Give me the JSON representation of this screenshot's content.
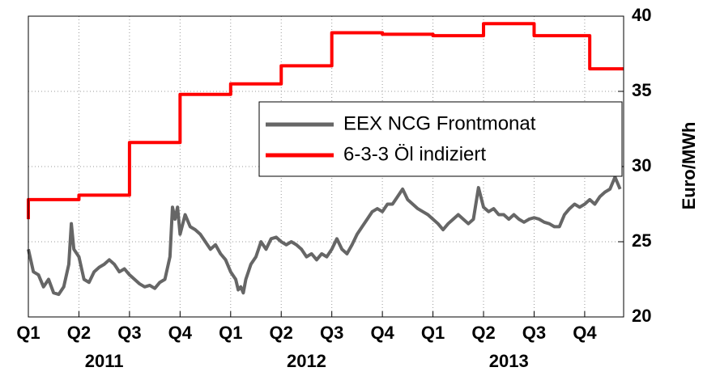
{
  "chart_data": {
    "type": "line",
    "y_label": "Euro/MWh",
    "ylim": [
      20,
      40
    ],
    "yticks": [
      20,
      25,
      30,
      35,
      40
    ],
    "xlim": [
      0,
      11.77
    ],
    "xticks": [
      {
        "value": 0,
        "label": "Q1"
      },
      {
        "value": 1,
        "label": "Q2"
      },
      {
        "value": 2,
        "label": "Q3"
      },
      {
        "value": 3,
        "label": "Q4"
      },
      {
        "value": 4,
        "label": "Q1"
      },
      {
        "value": 5,
        "label": "Q2"
      },
      {
        "value": 6,
        "label": "Q3"
      },
      {
        "value": 7,
        "label": "Q4"
      },
      {
        "value": 8,
        "label": "Q1"
      },
      {
        "value": 9,
        "label": "Q2"
      },
      {
        "value": 10,
        "label": "Q3"
      },
      {
        "value": 11,
        "label": "Q4"
      }
    ],
    "year_labels": [
      "2011",
      "2012",
      "2013"
    ],
    "grid": true,
    "legend": "center-right",
    "series": [
      {
        "name": "EEX NCG Frontmonat",
        "color": "#666666",
        "x": [
          0,
          0.1,
          0.2,
          0.3,
          0.4,
          0.5,
          0.6,
          0.7,
          0.8,
          0.85,
          0.9,
          1.0,
          1.1,
          1.2,
          1.3,
          1.4,
          1.5,
          1.6,
          1.7,
          1.8,
          1.9,
          2.0,
          2.1,
          2.2,
          2.3,
          2.4,
          2.5,
          2.6,
          2.7,
          2.8,
          2.85,
          2.9,
          2.95,
          3.0,
          3.1,
          3.2,
          3.3,
          3.4,
          3.5,
          3.6,
          3.7,
          3.8,
          3.9,
          4.0,
          4.1,
          4.15,
          4.2,
          4.25,
          4.3,
          4.4,
          4.5,
          4.6,
          4.7,
          4.8,
          4.9,
          5.0,
          5.1,
          5.2,
          5.3,
          5.4,
          5.5,
          5.6,
          5.7,
          5.8,
          5.9,
          6.0,
          6.1,
          6.2,
          6.3,
          6.4,
          6.5,
          6.6,
          6.7,
          6.8,
          6.9,
          7.0,
          7.1,
          7.2,
          7.3,
          7.4,
          7.5,
          7.6,
          7.7,
          7.8,
          7.9,
          8.0,
          8.1,
          8.2,
          8.3,
          8.4,
          8.5,
          8.6,
          8.7,
          8.8,
          8.9,
          9.0,
          9.1,
          9.2,
          9.3,
          9.4,
          9.5,
          9.6,
          9.7,
          9.8,
          9.9,
          10.0,
          10.1,
          10.2,
          10.3,
          10.4,
          10.5,
          10.6,
          10.7,
          10.8,
          10.9,
          11.0,
          11.1,
          11.2,
          11.3,
          11.4,
          11.5,
          11.6,
          11.7
        ],
        "values": [
          24.5,
          23.0,
          22.8,
          22.0,
          22.5,
          21.6,
          21.5,
          22.0,
          23.5,
          26.2,
          24.5,
          24.0,
          22.5,
          22.3,
          23.0,
          23.3,
          23.5,
          23.8,
          23.5,
          23.0,
          23.2,
          22.8,
          22.5,
          22.2,
          22.0,
          22.1,
          21.9,
          22.3,
          22.5,
          24.0,
          27.3,
          26.5,
          27.3,
          25.5,
          26.8,
          26.0,
          25.8,
          25.5,
          25.0,
          24.5,
          24.8,
          24.2,
          23.8,
          23.0,
          22.5,
          21.8,
          22.0,
          21.6,
          22.5,
          23.5,
          24.0,
          25.0,
          24.5,
          25.2,
          25.3,
          25.0,
          24.8,
          25.0,
          24.8,
          24.5,
          24.0,
          24.2,
          23.8,
          24.2,
          24.0,
          24.5,
          25.2,
          24.5,
          24.2,
          24.8,
          25.5,
          26.0,
          26.5,
          27.0,
          27.2,
          27.0,
          27.5,
          27.5,
          28.0,
          28.5,
          27.8,
          27.5,
          27.2,
          27.0,
          26.8,
          26.5,
          26.2,
          25.8,
          26.2,
          26.5,
          26.8,
          26.5,
          26.2,
          26.5,
          28.6,
          27.3,
          27.0,
          27.2,
          26.8,
          26.8,
          26.5,
          26.8,
          26.5,
          26.3,
          26.5,
          26.6,
          26.5,
          26.3,
          26.2,
          26.0,
          26.0,
          26.8,
          27.2,
          27.5,
          27.3,
          27.5,
          27.8,
          27.5,
          28.0,
          28.3,
          28.5,
          29.3,
          28.5
        ]
      },
      {
        "name": "6-3-3 Öl indiziert",
        "color": "#ff0000",
        "x": [
          0,
          0,
          1,
          1,
          2,
          2,
          3,
          3,
          4,
          4,
          5,
          5,
          6,
          6,
          7,
          7,
          8,
          8,
          9,
          9,
          10,
          10,
          11.1,
          11.1,
          11.77
        ],
        "values": [
          26.5,
          27.8,
          27.8,
          28.1,
          28.1,
          31.6,
          31.6,
          34.8,
          34.8,
          35.5,
          35.5,
          36.7,
          36.7,
          38.9,
          38.9,
          38.8,
          38.8,
          38.7,
          38.7,
          39.5,
          39.5,
          38.7,
          38.7,
          36.5,
          36.5
        ]
      }
    ]
  }
}
